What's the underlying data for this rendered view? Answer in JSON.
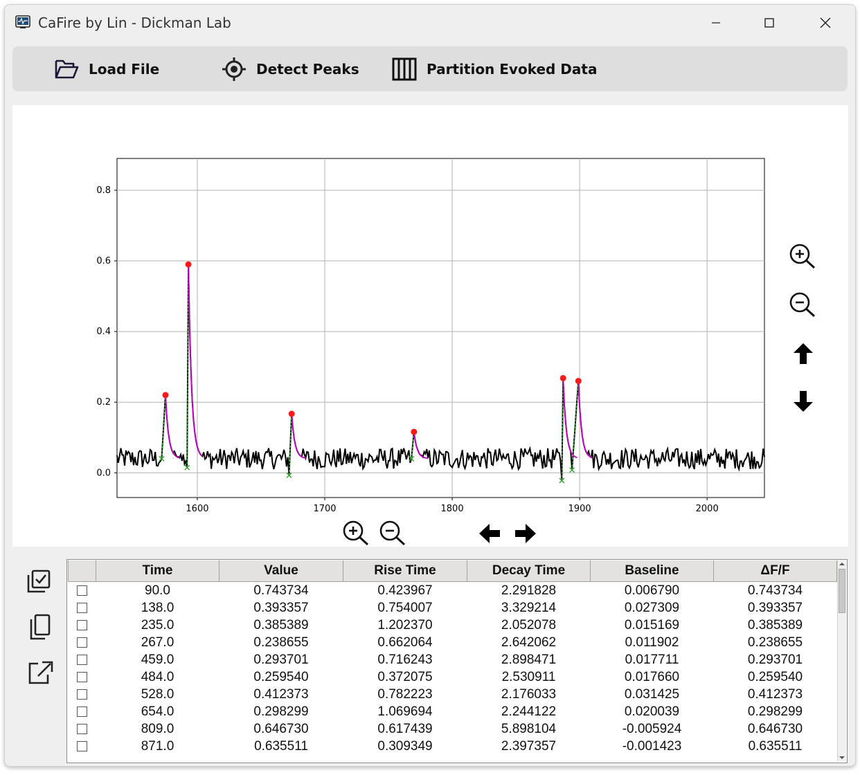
{
  "window": {
    "title": "CaFire by Lin - Dickman Lab"
  },
  "toolbar": {
    "load_file": "Load File",
    "detect_peaks": "Detect Peaks",
    "partition": "Partition Evoked Data"
  },
  "plot_controls": {
    "right": [
      "zoom-in-icon",
      "zoom-out-icon",
      "arrow-up-icon",
      "arrow-down-icon"
    ],
    "bottom": [
      "zoom-in-icon",
      "zoom-out-icon",
      "arrow-left-icon",
      "arrow-right-icon"
    ]
  },
  "side_tools": [
    "select-all-icon",
    "copy-icon",
    "export-icon"
  ],
  "chart_data": {
    "type": "line",
    "title": "",
    "xlabel": "",
    "ylabel": "",
    "xlim": [
      1537,
      2045
    ],
    "ylim": [
      -0.07,
      0.89
    ],
    "xticks": [
      "1600",
      "1700",
      "1800",
      "1900",
      "2000"
    ],
    "yticks": [
      "0.0",
      "0.2",
      "0.4",
      "0.6",
      "0.8"
    ],
    "grid": true,
    "series": [
      {
        "values_style": "black trace",
        "x_start": 1537,
        "x_end": 2045,
        "color": "#000000",
        "baseline_noise": 0.03,
        "peaks": [
          {
            "x": 1575,
            "y": 0.22
          },
          {
            "x": 1593,
            "y": 0.59
          },
          {
            "x": 1674,
            "y": 0.167
          },
          {
            "x": 1770,
            "y": 0.116
          },
          {
            "x": 1887,
            "y": 0.268
          },
          {
            "x": 1899,
            "y": 0.26
          }
        ],
        "onsets": [
          {
            "x": 1572,
            "y": 0.04
          },
          {
            "x": 1592,
            "y": 0.015
          },
          {
            "x": 1672,
            "y": -0.007
          },
          {
            "x": 1768,
            "y": 0.04
          },
          {
            "x": 1886,
            "y": -0.022
          },
          {
            "x": 1894,
            "y": 0.008
          }
        ]
      }
    ],
    "peak_marker_color": "#ff1a1a",
    "onset_marker_color": "#2ca02c",
    "fit_color": "#cc00cc"
  },
  "table": {
    "headers": [
      "Time",
      "Value",
      "Rise Time",
      "Decay Time",
      "Baseline",
      "ΔF/F"
    ],
    "rows": [
      [
        "90.0",
        "0.743734",
        "0.423967",
        "2.291828",
        "0.006790",
        "0.743734"
      ],
      [
        "138.0",
        "0.393357",
        "0.754007",
        "3.329214",
        "0.027309",
        "0.393357"
      ],
      [
        "235.0",
        "0.385389",
        "1.202370",
        "2.052078",
        "0.015169",
        "0.385389"
      ],
      [
        "267.0",
        "0.238655",
        "0.662064",
        "2.642062",
        "0.011902",
        "0.238655"
      ],
      [
        "459.0",
        "0.293701",
        "0.716243",
        "2.898471",
        "0.017711",
        "0.293701"
      ],
      [
        "484.0",
        "0.259540",
        "0.372075",
        "2.530911",
        "0.017660",
        "0.259540"
      ],
      [
        "528.0",
        "0.412373",
        "0.782223",
        "2.176033",
        "0.031425",
        "0.412373"
      ],
      [
        "654.0",
        "0.298299",
        "1.069694",
        "2.244122",
        "0.020039",
        "0.298299"
      ],
      [
        "809.0",
        "0.646730",
        "0.617439",
        "5.898104",
        "-0.005924",
        "0.646730"
      ],
      [
        "871.0",
        "0.635511",
        "0.309349",
        "2.397357",
        "-0.001423",
        "0.635511"
      ]
    ]
  }
}
